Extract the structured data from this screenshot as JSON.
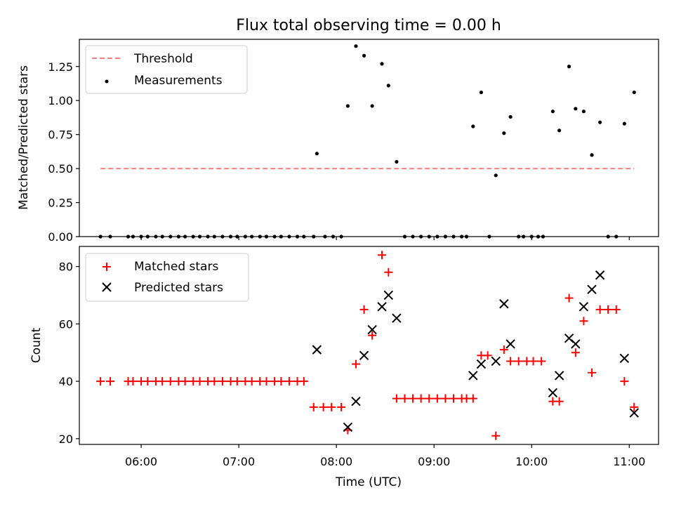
{
  "chart_data": [
    {
      "type": "scatter",
      "title": "Flux total observing time = 0.00 h",
      "xlabel": "",
      "ylabel": "Matched/Predicted stars",
      "ylim": [
        0,
        1.45
      ],
      "xlim": [
        "05:22",
        "11:18"
      ],
      "yticks": [
        0.0,
        0.25,
        0.5,
        0.75,
        1.0,
        1.25
      ],
      "ytick_labels": [
        "0.00",
        "0.25",
        "0.50",
        "0.75",
        "1.00",
        "1.25"
      ],
      "legend_position": "top-left",
      "series": [
        {
          "name": "Threshold",
          "style": "dashed-line",
          "color": "#ff7f7f",
          "points": [
            [
              "05:35",
              0.5
            ],
            [
              "11:03",
              0.5
            ]
          ]
        },
        {
          "name": "Measurements",
          "style": "dot",
          "color": "#000000",
          "points": [
            [
              "05:35",
              0
            ],
            [
              "05:41",
              0
            ],
            [
              "05:52",
              0
            ],
            [
              "05:55",
              0
            ],
            [
              "06:00",
              0
            ],
            [
              "06:04",
              0
            ],
            [
              "06:09",
              0
            ],
            [
              "06:13",
              0
            ],
            [
              "06:18",
              0
            ],
            [
              "06:23",
              0
            ],
            [
              "06:27",
              0
            ],
            [
              "06:32",
              0
            ],
            [
              "06:36",
              0
            ],
            [
              "06:41",
              0
            ],
            [
              "06:45",
              0
            ],
            [
              "06:50",
              0
            ],
            [
              "06:55",
              0
            ],
            [
              "06:59",
              0
            ],
            [
              "07:04",
              0
            ],
            [
              "07:08",
              0
            ],
            [
              "07:13",
              0
            ],
            [
              "07:17",
              0
            ],
            [
              "07:22",
              0
            ],
            [
              "07:26",
              0
            ],
            [
              "07:31",
              0
            ],
            [
              "07:36",
              0
            ],
            [
              "07:40",
              0
            ],
            [
              "07:46",
              0
            ],
            [
              "07:48",
              0.61
            ],
            [
              "07:53",
              0
            ],
            [
              "07:58",
              0
            ],
            [
              "08:03",
              0
            ],
            [
              "08:07",
              0.96
            ],
            [
              "08:12",
              1.4
            ],
            [
              "08:17",
              1.33
            ],
            [
              "08:22",
              0.96
            ],
            [
              "08:28",
              1.27
            ],
            [
              "08:32",
              1.11
            ],
            [
              "08:37",
              0.55
            ],
            [
              "08:42",
              0
            ],
            [
              "08:47",
              0
            ],
            [
              "08:52",
              0
            ],
            [
              "08:57",
              0
            ],
            [
              "09:02",
              0
            ],
            [
              "09:07",
              0
            ],
            [
              "09:12",
              0
            ],
            [
              "09:17",
              0
            ],
            [
              "09:20",
              0
            ],
            [
              "09:24",
              0.81
            ],
            [
              "09:29",
              1.06
            ],
            [
              "09:34",
              0
            ],
            [
              "09:38",
              0.45
            ],
            [
              "09:43",
              0.76
            ],
            [
              "09:47",
              0.88
            ],
            [
              "09:52",
              0
            ],
            [
              "09:55",
              0
            ],
            [
              "10:00",
              0
            ],
            [
              "10:04",
              0
            ],
            [
              "10:07",
              0
            ],
            [
              "10:13",
              0.92
            ],
            [
              "10:17",
              0.78
            ],
            [
              "10:23",
              1.25
            ],
            [
              "10:27",
              0.94
            ],
            [
              "10:32",
              0.92
            ],
            [
              "10:37",
              0.6
            ],
            [
              "10:42",
              0.84
            ],
            [
              "10:47",
              0
            ],
            [
              "10:52",
              0
            ],
            [
              "10:57",
              0.83
            ],
            [
              "11:03",
              1.06
            ]
          ]
        }
      ]
    },
    {
      "type": "scatter",
      "title": "",
      "xlabel": "Time (UTC)",
      "ylabel": "Count",
      "ylim": [
        18,
        87
      ],
      "xlim": [
        "05:22",
        "11:18"
      ],
      "yticks": [
        20,
        40,
        60,
        80
      ],
      "ytick_labels": [
        "20",
        "40",
        "60",
        "80"
      ],
      "xticks": [
        "06:00",
        "07:00",
        "08:00",
        "09:00",
        "10:00",
        "11:00"
      ],
      "xtick_labels": [
        "06:00",
        "07:00",
        "08:00",
        "09:00",
        "10:00",
        "11:00"
      ],
      "legend_position": "top-left",
      "series": [
        {
          "name": "Matched stars",
          "style": "plus",
          "color": "#ff0000",
          "points": [
            [
              "05:35",
              40
            ],
            [
              "05:41",
              40
            ],
            [
              "05:52",
              40
            ],
            [
              "05:55",
              40
            ],
            [
              "06:00",
              40
            ],
            [
              "06:04",
              40
            ],
            [
              "06:09",
              40
            ],
            [
              "06:13",
              40
            ],
            [
              "06:18",
              40
            ],
            [
              "06:23",
              40
            ],
            [
              "06:27",
              40
            ],
            [
              "06:32",
              40
            ],
            [
              "06:36",
              40
            ],
            [
              "06:41",
              40
            ],
            [
              "06:45",
              40
            ],
            [
              "06:50",
              40
            ],
            [
              "06:55",
              40
            ],
            [
              "06:59",
              40
            ],
            [
              "07:04",
              40
            ],
            [
              "07:08",
              40
            ],
            [
              "07:13",
              40
            ],
            [
              "07:17",
              40
            ],
            [
              "07:22",
              40
            ],
            [
              "07:26",
              40
            ],
            [
              "07:31",
              40
            ],
            [
              "07:36",
              40
            ],
            [
              "07:40",
              40
            ],
            [
              "07:46",
              31
            ],
            [
              "07:52",
              31
            ],
            [
              "07:57",
              31
            ],
            [
              "08:03",
              31
            ],
            [
              "08:07",
              23
            ],
            [
              "08:12",
              46
            ],
            [
              "08:17",
              65
            ],
            [
              "08:22",
              56
            ],
            [
              "08:28",
              84
            ],
            [
              "08:32",
              78
            ],
            [
              "08:37",
              34
            ],
            [
              "08:42",
              34
            ],
            [
              "08:47",
              34
            ],
            [
              "08:52",
              34
            ],
            [
              "08:57",
              34
            ],
            [
              "09:02",
              34
            ],
            [
              "09:07",
              34
            ],
            [
              "09:12",
              34
            ],
            [
              "09:17",
              34
            ],
            [
              "09:20",
              34
            ],
            [
              "09:24",
              34
            ],
            [
              "09:29",
              49
            ],
            [
              "09:33",
              49
            ],
            [
              "09:38",
              21
            ],
            [
              "09:43",
              51
            ],
            [
              "09:47",
              47
            ],
            [
              "09:52",
              47
            ],
            [
              "09:57",
              47
            ],
            [
              "10:01",
              47
            ],
            [
              "10:06",
              47
            ],
            [
              "10:13",
              33
            ],
            [
              "10:17",
              33
            ],
            [
              "10:23",
              69
            ],
            [
              "10:27",
              50
            ],
            [
              "10:32",
              61
            ],
            [
              "10:37",
              43
            ],
            [
              "10:42",
              65
            ],
            [
              "10:47",
              65
            ],
            [
              "10:52",
              65
            ],
            [
              "10:57",
              40
            ],
            [
              "11:03",
              31
            ]
          ]
        },
        {
          "name": "Predicted stars",
          "style": "x",
          "color": "#000000",
          "points": [
            [
              "07:48",
              51
            ],
            [
              "08:07",
              24
            ],
            [
              "08:12",
              33
            ],
            [
              "08:17",
              49
            ],
            [
              "08:22",
              58
            ],
            [
              "08:28",
              66
            ],
            [
              "08:32",
              70
            ],
            [
              "08:37",
              62
            ],
            [
              "09:24",
              42
            ],
            [
              "09:29",
              46
            ],
            [
              "09:38",
              47
            ],
            [
              "09:43",
              67
            ],
            [
              "09:47",
              53
            ],
            [
              "10:13",
              36
            ],
            [
              "10:17",
              42
            ],
            [
              "10:23",
              55
            ],
            [
              "10:27",
              53
            ],
            [
              "10:32",
              66
            ],
            [
              "10:37",
              72
            ],
            [
              "10:42",
              77
            ],
            [
              "10:57",
              48
            ],
            [
              "11:03",
              29
            ]
          ]
        }
      ]
    }
  ]
}
